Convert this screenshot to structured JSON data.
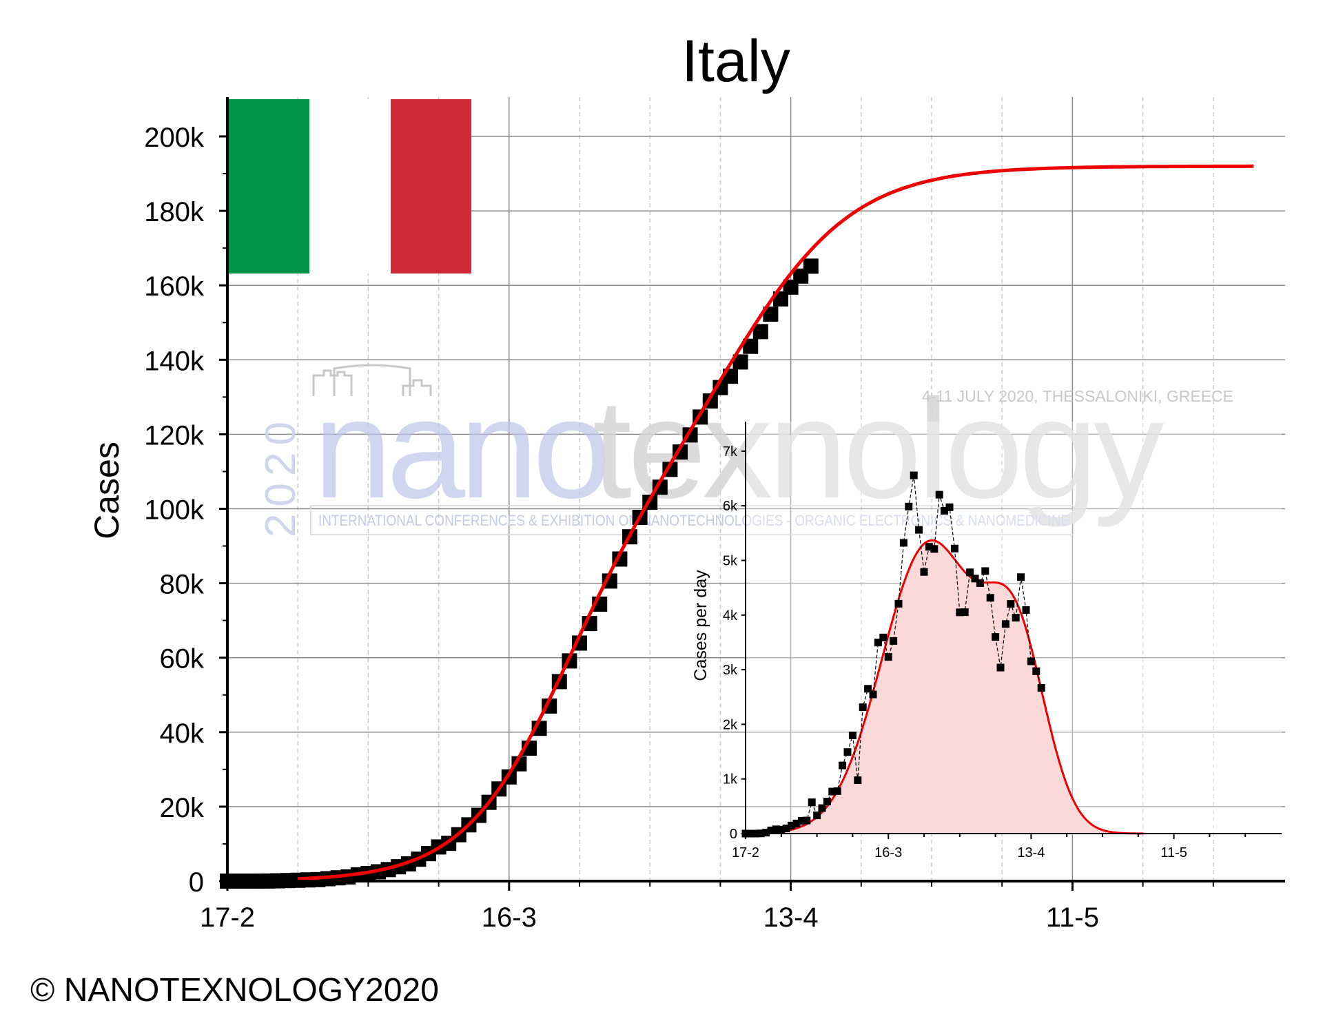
{
  "chart_data": [
    {
      "type": "scatter",
      "title": "Italy",
      "xlabel": "",
      "ylabel": "Cases",
      "x_ticks": [
        "17-2",
        "16-3",
        "13-4",
        "11-5"
      ],
      "y_ticks": [
        "0",
        "20k",
        "40k",
        "60k",
        "80k",
        "100k",
        "120k",
        "140k",
        "160k",
        "180k",
        "200k"
      ],
      "xlim": [
        "2020-02-17",
        "2020-05-29"
      ],
      "ylim": [
        0,
        210000
      ],
      "grid": true,
      "series": [
        {
          "role": "data-points",
          "marker": "square",
          "color": "#000000",
          "points": [
            [
              "2020-02-17",
              0
            ],
            [
              "2020-02-18",
              0
            ],
            [
              "2020-02-19",
              0
            ],
            [
              "2020-02-20",
              3
            ],
            [
              "2020-02-21",
              20
            ],
            [
              "2020-02-22",
              79
            ],
            [
              "2020-02-23",
              150
            ],
            [
              "2020-02-24",
              229
            ],
            [
              "2020-02-25",
              322
            ],
            [
              "2020-02-26",
              400
            ],
            [
              "2020-02-27",
              650
            ],
            [
              "2020-02-28",
              888
            ],
            [
              "2020-02-29",
              1128
            ],
            [
              "2020-03-01",
              1694
            ],
            [
              "2020-03-02",
              2036
            ],
            [
              "2020-03-03",
              2502
            ],
            [
              "2020-03-04",
              3089
            ],
            [
              "2020-03-05",
              3858
            ],
            [
              "2020-03-06",
              4636
            ],
            [
              "2020-03-07",
              5883
            ],
            [
              "2020-03-08",
              7375
            ],
            [
              "2020-03-09",
              9172
            ],
            [
              "2020-03-10",
              10149
            ],
            [
              "2020-03-11",
              12462
            ],
            [
              "2020-03-12",
              15113
            ],
            [
              "2020-03-13",
              17660
            ],
            [
              "2020-03-14",
              21157
            ],
            [
              "2020-03-15",
              24747
            ],
            [
              "2020-03-16",
              27980
            ],
            [
              "2020-03-17",
              31506
            ],
            [
              "2020-03-18",
              35713
            ],
            [
              "2020-03-19",
              41035
            ],
            [
              "2020-03-20",
              47021
            ],
            [
              "2020-03-21",
              53578
            ],
            [
              "2020-03-22",
              59138
            ],
            [
              "2020-03-23",
              63927
            ],
            [
              "2020-03-24",
              69176
            ],
            [
              "2020-03-25",
              74386
            ],
            [
              "2020-03-26",
              80589
            ],
            [
              "2020-03-27",
              86498
            ],
            [
              "2020-03-28",
              92472
            ],
            [
              "2020-03-29",
              97689
            ],
            [
              "2020-03-30",
              101739
            ],
            [
              "2020-03-31",
              105792
            ],
            [
              "2020-04-01",
              110574
            ],
            [
              "2020-04-02",
              115242
            ],
            [
              "2020-04-03",
              119827
            ],
            [
              "2020-04-04",
              124632
            ],
            [
              "2020-04-05",
              128948
            ],
            [
              "2020-04-06",
              132547
            ],
            [
              "2020-04-07",
              135586
            ],
            [
              "2020-04-08",
              139422
            ],
            [
              "2020-04-09",
              143626
            ],
            [
              "2020-04-10",
              147577
            ],
            [
              "2020-04-11",
              152271
            ],
            [
              "2020-04-12",
              156363
            ],
            [
              "2020-04-13",
              159516
            ],
            [
              "2020-04-14",
              162488
            ],
            [
              "2020-04-15",
              165155
            ]
          ]
        },
        {
          "role": "fit",
          "color": "#ee0000",
          "x_start": "2020-02-24",
          "x_end": "2020-05-29",
          "curve": "bi-logistic",
          "plateau": 192000
        }
      ],
      "legend": "Italian flag, top-left"
    },
    {
      "type": "area",
      "ylabel": "Cases per day",
      "xlabel": "",
      "x_ticks": [
        "17-2",
        "16-3",
        "13-4",
        "11-5"
      ],
      "y_ticks": [
        "0",
        "1k",
        "2k",
        "3k",
        "4k",
        "5k",
        "6k",
        "7k"
      ],
      "xlim": [
        "2020-02-17",
        "2020-05-29"
      ],
      "ylim": [
        0,
        7500
      ],
      "series": [
        {
          "role": "daily-points",
          "marker": "square",
          "connected": true,
          "color": "#000000",
          "points": [
            [
              "2020-02-17",
              0
            ],
            [
              "2020-02-18",
              0
            ],
            [
              "2020-02-19",
              0
            ],
            [
              "2020-02-20",
              3
            ],
            [
              "2020-02-21",
              17
            ],
            [
              "2020-02-22",
              58
            ],
            [
              "2020-02-23",
              78
            ],
            [
              "2020-02-24",
              72
            ],
            [
              "2020-02-25",
              94
            ],
            [
              "2020-02-26",
              147
            ],
            [
              "2020-02-27",
              185
            ],
            [
              "2020-02-28",
              234
            ],
            [
              "2020-02-29",
              239
            ],
            [
              "2020-03-01",
              573
            ],
            [
              "2020-03-02",
              335
            ],
            [
              "2020-03-03",
              466
            ],
            [
              "2020-03-04",
              587
            ],
            [
              "2020-03-05",
              769
            ],
            [
              "2020-03-06",
              778
            ],
            [
              "2020-03-07",
              1247
            ],
            [
              "2020-03-08",
              1492
            ],
            [
              "2020-03-09",
              1797
            ],
            [
              "2020-03-10",
              977
            ],
            [
              "2020-03-11",
              2313
            ],
            [
              "2020-03-12",
              2651
            ],
            [
              "2020-03-13",
              2547
            ],
            [
              "2020-03-14",
              3497
            ],
            [
              "2020-03-15",
              3590
            ],
            [
              "2020-03-16",
              3233
            ],
            [
              "2020-03-17",
              3526
            ],
            [
              "2020-03-18",
              4207
            ],
            [
              "2020-03-19",
              5322
            ],
            [
              "2020-03-20",
              5986
            ],
            [
              "2020-03-21",
              6557
            ],
            [
              "2020-03-22",
              5560
            ],
            [
              "2020-03-23",
              4789
            ],
            [
              "2020-03-24",
              5249
            ],
            [
              "2020-03-25",
              5210
            ],
            [
              "2020-03-26",
              6203
            ],
            [
              "2020-03-27",
              5909
            ],
            [
              "2020-03-28",
              5974
            ],
            [
              "2020-03-29",
              5217
            ],
            [
              "2020-03-30",
              4050
            ],
            [
              "2020-03-31",
              4053
            ],
            [
              "2020-04-01",
              4782
            ],
            [
              "2020-04-02",
              4668
            ],
            [
              "2020-04-03",
              4585
            ],
            [
              "2020-04-04",
              4805
            ],
            [
              "2020-04-05",
              4316
            ],
            [
              "2020-04-06",
              3599
            ],
            [
              "2020-04-07",
              3039
            ],
            [
              "2020-04-08",
              3836
            ],
            [
              "2020-04-09",
              4204
            ],
            [
              "2020-04-10",
              3951
            ],
            [
              "2020-04-11",
              4694
            ],
            [
              "2020-04-12",
              4092
            ],
            [
              "2020-04-13",
              3153
            ],
            [
              "2020-04-14",
              2972
            ],
            [
              "2020-04-15",
              2667
            ]
          ]
        },
        {
          "role": "fit",
          "color": "#ee0000",
          "fill": "#fbd9d9",
          "peak_1": {
            "date": "2020-03-24",
            "value": 5800
          },
          "peak_2": {
            "date": "2020-04-10",
            "value": 4000
          },
          "x_end": "2020-05-05"
        }
      ]
    }
  ],
  "flag": {
    "colors": [
      "#009246",
      "#ffffff",
      "#ce2b37"
    ]
  },
  "watermark": {
    "word_dark": "nano",
    "word_light": "texnology",
    "year": "2020",
    "tagline": "4-11 JULY 2020, THESSALONIKI, GREECE",
    "subtitle": "INTERNATIONAL CONFERENCES & EXHIBITION ON NANOTECHNOLOGIES - ORGANIC ELECTRONICS & NANOMEDICINE"
  },
  "credit": "© NANOTEXNOLOGY2020"
}
